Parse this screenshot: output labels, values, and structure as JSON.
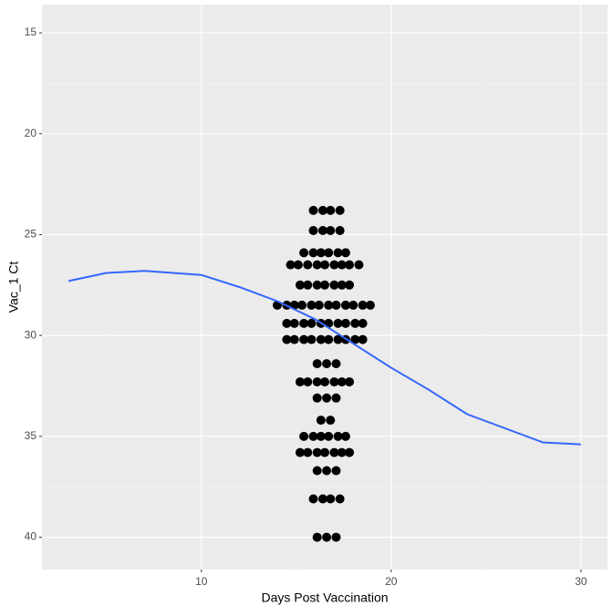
{
  "chart_data": {
    "type": "scatter",
    "x_label": "Days Post Vaccination",
    "y_label": "Vac_1 Ct",
    "xlim": [
      1.6,
      31.4
    ],
    "ylim": [
      13.6,
      41.6
    ],
    "y_reversed": true,
    "xticks": [
      10,
      20,
      30
    ],
    "yticks": [
      15,
      20,
      25,
      30,
      35,
      40
    ],
    "minor_xticks": [
      5,
      15,
      25
    ],
    "minor_yticks": [
      17.5,
      22.5,
      27.5,
      32.5,
      37.5
    ],
    "grid": true,
    "series": [
      {
        "type": "scatter",
        "color": "#000000",
        "x": [
          15.9,
          16.4,
          16.8,
          17.3,
          15.9,
          16.4,
          16.8,
          17.3,
          15.4,
          15.9,
          16.3,
          16.7,
          17.2,
          17.6,
          14.7,
          15.1,
          15.6,
          16.1,
          16.5,
          17.0,
          17.4,
          17.8,
          18.3,
          15.2,
          15.6,
          16.1,
          16.5,
          17.0,
          17.4,
          17.8,
          14.0,
          14.5,
          14.9,
          15.3,
          15.8,
          16.2,
          16.7,
          17.1,
          17.6,
          18.0,
          18.5,
          18.9,
          14.5,
          14.9,
          15.4,
          15.8,
          16.3,
          16.7,
          17.2,
          17.6,
          18.1,
          18.5,
          14.5,
          14.9,
          15.4,
          15.8,
          16.3,
          16.7,
          17.2,
          17.6,
          18.1,
          18.5,
          16.1,
          16.6,
          17.1,
          15.2,
          15.6,
          16.1,
          16.5,
          17.0,
          17.4,
          17.8,
          16.1,
          16.6,
          17.1,
          16.3,
          16.8,
          15.4,
          15.9,
          16.3,
          16.7,
          17.2,
          17.6,
          15.2,
          15.6,
          16.1,
          16.5,
          17.0,
          17.4,
          17.8,
          16.1,
          16.6,
          17.1,
          15.9,
          16.4,
          16.8,
          17.3,
          16.1,
          16.6,
          17.1
        ],
        "values": [
          23.8,
          23.8,
          23.8,
          23.8,
          24.8,
          24.8,
          24.8,
          24.8,
          25.9,
          25.9,
          25.9,
          25.9,
          25.9,
          25.9,
          26.5,
          26.5,
          26.5,
          26.5,
          26.5,
          26.5,
          26.5,
          26.5,
          26.5,
          27.5,
          27.5,
          27.5,
          27.5,
          27.5,
          27.5,
          27.5,
          28.5,
          28.5,
          28.5,
          28.5,
          28.5,
          28.5,
          28.5,
          28.5,
          28.5,
          28.5,
          28.5,
          28.5,
          29.4,
          29.4,
          29.4,
          29.4,
          29.4,
          29.4,
          29.4,
          29.4,
          29.4,
          29.4,
          30.2,
          30.2,
          30.2,
          30.2,
          30.2,
          30.2,
          30.2,
          30.2,
          30.2,
          30.2,
          31.4,
          31.4,
          31.4,
          32.3,
          32.3,
          32.3,
          32.3,
          32.3,
          32.3,
          32.3,
          33.1,
          33.1,
          33.1,
          34.2,
          34.2,
          35.0,
          35.0,
          35.0,
          35.0,
          35.0,
          35.0,
          35.8,
          35.8,
          35.8,
          35.8,
          35.8,
          35.8,
          35.8,
          36.7,
          36.7,
          36.7,
          38.1,
          38.1,
          38.1,
          38.1,
          40.0,
          40.0,
          40.0
        ]
      },
      {
        "type": "line",
        "color": "#3366ff",
        "x": [
          3,
          5,
          7,
          10,
          12,
          14,
          16,
          18,
          20,
          22,
          24,
          26,
          28,
          30
        ],
        "values": [
          27.3,
          26.9,
          26.8,
          27.0,
          27.6,
          28.3,
          29.2,
          30.4,
          31.6,
          32.7,
          33.9,
          34.6,
          35.3,
          35.4
        ]
      }
    ]
  }
}
